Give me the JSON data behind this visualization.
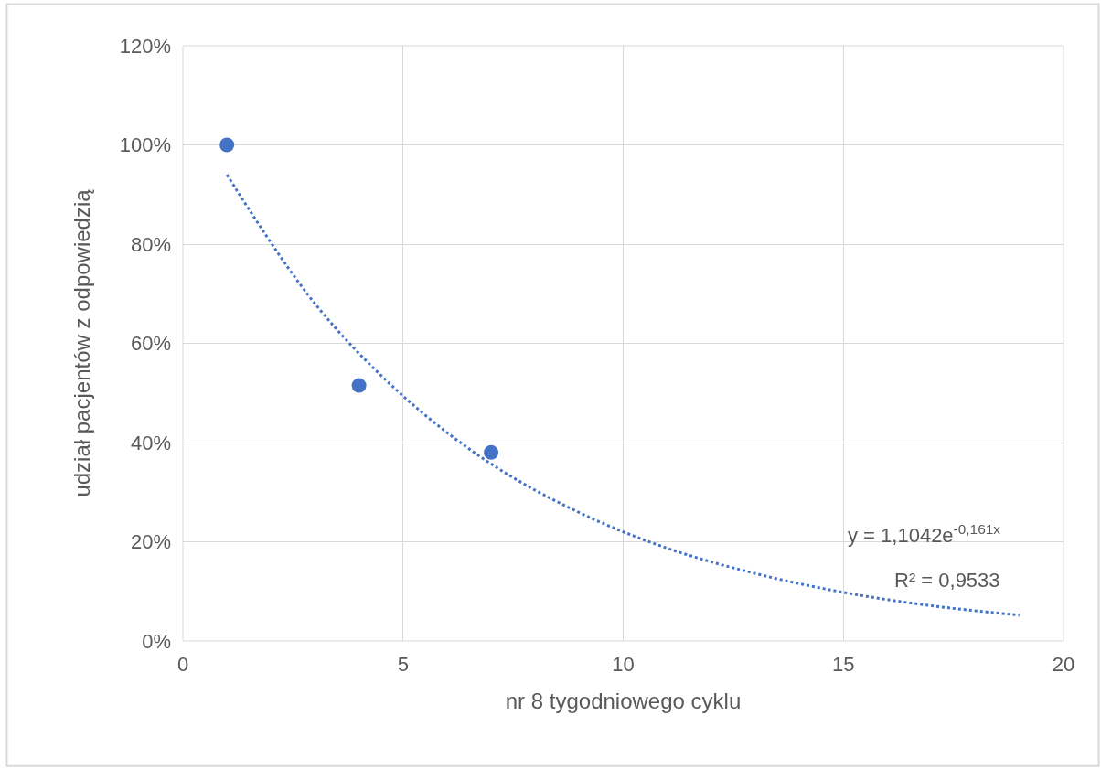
{
  "chart_data": {
    "type": "scatter",
    "xlabel": "nr 8 tygodniowego cyklu",
    "ylabel": "udział pacjentów z odpowiedzią",
    "xlim": [
      0,
      20
    ],
    "xticks": [
      0,
      5,
      10,
      15,
      20
    ],
    "ylim": [
      0,
      120
    ],
    "yticks": [
      {
        "value": 0,
        "label": "0%"
      },
      {
        "value": 20,
        "label": "20%"
      },
      {
        "value": 40,
        "label": "40%"
      },
      {
        "value": 60,
        "label": "60%"
      },
      {
        "value": 80,
        "label": "80%"
      },
      {
        "value": 100,
        "label": "100%"
      },
      {
        "value": 120,
        "label": "120%"
      }
    ],
    "grid": true,
    "marker": "circle",
    "series": [
      {
        "color": "#4472c4",
        "x": [
          1,
          4,
          7
        ],
        "values": [
          100,
          51.5,
          38
        ]
      },
      {
        "type": "line",
        "color": "#4472c4",
        "line_style": "dotted",
        "marker": "none",
        "x": [
          1,
          3,
          5,
          7,
          9,
          11,
          13,
          15,
          17,
          19
        ],
        "values": [
          94,
          68,
          49.4,
          35.7,
          25.9,
          18.7,
          13.6,
          9.8,
          7.1,
          5.2
        ]
      }
    ],
    "annotations": [
      "y = 1,1042e$^{-0,161x}$",
      "R² = 0,9533"
    ]
  }
}
